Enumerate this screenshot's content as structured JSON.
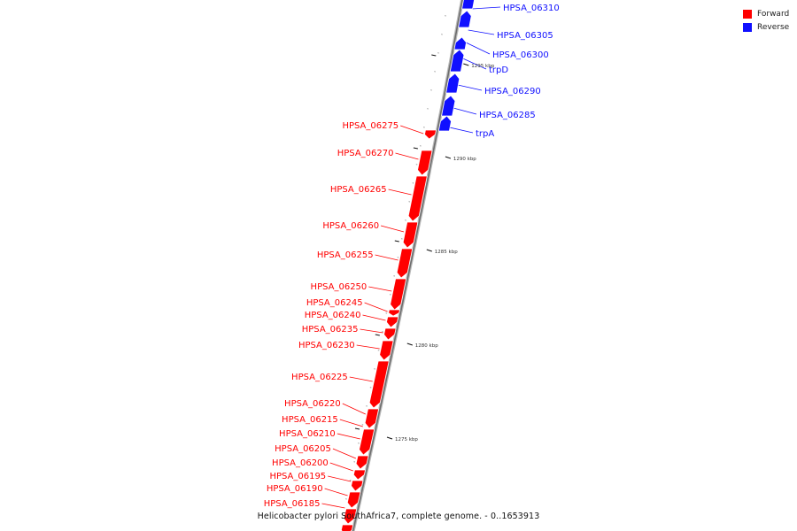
{
  "legend": {
    "forward_label": "Forward",
    "reverse_label": "Reverse",
    "forward_color": "#ff0000",
    "reverse_color": "#1010ff"
  },
  "caption": "Helicobacter pylori SouthAfrica7, complete genome. - 0..1653913",
  "strands": {
    "reverse": [
      "HPSA_06310",
      "HPSA_06305",
      "HPSA_06300",
      "trpD",
      "HPSA_06290",
      "HPSA_06285",
      "trpA"
    ],
    "forward": [
      "HPSA_06275",
      "HPSA_06270",
      "HPSA_06265",
      "HPSA_06260",
      "HPSA_06255",
      "HPSA_06250",
      "HPSA_06245",
      "HPSA_06240",
      "HPSA_06235",
      "HPSA_06230",
      "HPSA_06225",
      "HPSA_06220",
      "HPSA_06215",
      "HPSA_06210",
      "HPSA_06205",
      "HPSA_06200",
      "HPSA_06195",
      "HPSA_06190",
      "HPSA_06185"
    ]
  },
  "ticks": [
    "1295 kbp",
    "1290 kbp",
    "1285 kbp",
    "1280 kbp",
    "1275 kbp"
  ]
}
